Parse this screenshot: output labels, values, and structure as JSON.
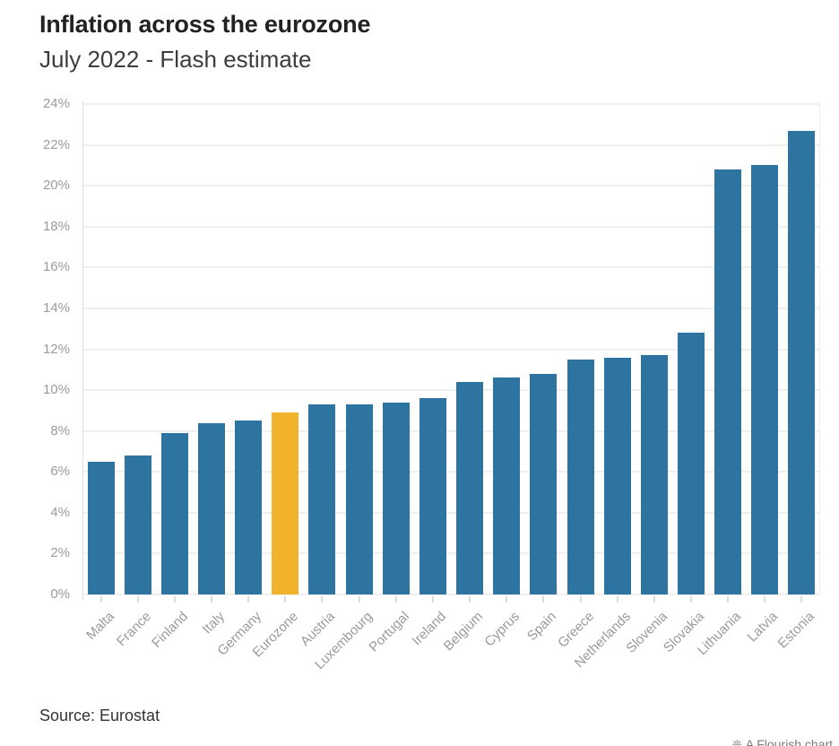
{
  "header": {
    "title": "Inflation across the eurozone",
    "subtitle": "July 2022 - Flash estimate"
  },
  "footer": {
    "source": "Source: Eurostat",
    "watermark_icon": "❊",
    "watermark": "A Flourish chart"
  },
  "colors": {
    "bar": "#2e74a0",
    "highlight": "#f0b32b",
    "grid": "#efefef",
    "axis": "#dcdcdc",
    "tick_label": "#9b9b9b",
    "title": "#222222",
    "subtitle": "#3d3d3d",
    "source": "#333333"
  },
  "chart_data": {
    "type": "bar",
    "title": "Inflation across the eurozone",
    "subtitle": "July 2022 - Flash estimate",
    "xlabel": "",
    "ylabel": "",
    "categories": [
      "Malta",
      "France",
      "Finland",
      "Italy",
      "Germany",
      "Eurozone",
      "Austria",
      "Luxembourg",
      "Portugal",
      "Ireland",
      "Belgium",
      "Cyprus",
      "Spain",
      "Greece",
      "Netherlands",
      "Slovenia",
      "Slovakia",
      "Lithuania",
      "Latvia",
      "Estonia"
    ],
    "values": [
      6.5,
      6.8,
      7.9,
      8.4,
      8.5,
      8.9,
      9.3,
      9.3,
      9.4,
      9.6,
      10.4,
      10.6,
      10.8,
      11.5,
      11.6,
      11.7,
      12.8,
      20.8,
      21.0,
      22.7
    ],
    "highlight_category": "Eurozone",
    "ylim": [
      0,
      24
    ],
    "ytick_step": 2,
    "ytick_labels": [
      "0%",
      "2%",
      "4%",
      "6%",
      "8%",
      "10%",
      "12%",
      "14%",
      "16%",
      "18%",
      "20%",
      "22%",
      "24%"
    ],
    "grid": true,
    "legend": "none",
    "source": "Source: Eurostat"
  }
}
